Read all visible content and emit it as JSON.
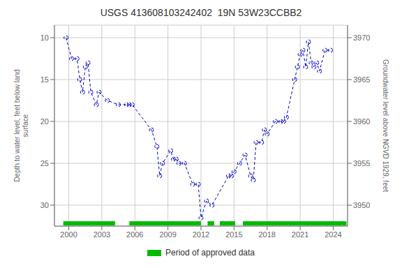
{
  "chart_data": {
    "type": "line",
    "title": "USGS 413608103242402  19N 53W23CCBB2",
    "ylabel": "Depth to water level, feet below land\nsurface",
    "y2label": "Groundwater level above NGVD 1929, feet",
    "x": [
      1999.75,
      2000.25,
      2000.75,
      2001.0,
      2001.25,
      2001.5,
      2001.75,
      2002.0,
      2002.5,
      2002.75,
      2003.5,
      2004.5,
      2005.25,
      2005.5,
      2005.75,
      2007.5,
      2008.0,
      2008.25,
      2008.5,
      2009.25,
      2009.5,
      2009.75,
      2010.0,
      2010.5,
      2011.25,
      2011.75,
      2012.0,
      2012.5,
      2013.0,
      2014.5,
      2014.75,
      2015.0,
      2015.5,
      2016.0,
      2016.5,
      2016.75,
      2017.0,
      2017.5,
      2017.75,
      2018.0,
      2018.75,
      2019.25,
      2019.5,
      2019.75,
      2020.5,
      2020.75,
      2021.0,
      2021.25,
      2021.5,
      2021.75,
      2022.0,
      2022.25,
      2022.5,
      2022.75,
      2023.25,
      2023.75
    ],
    "values": [
      10.0,
      12.5,
      12.5,
      15.0,
      16.5,
      13.5,
      13.0,
      16.5,
      18.0,
      16.5,
      17.5,
      18.0,
      18.0,
      18.0,
      18.0,
      21.0,
      23.0,
      26.5,
      25.0,
      23.5,
      24.5,
      24.5,
      25.0,
      25.0,
      27.5,
      27.5,
      31.5,
      29.5,
      30.0,
      26.5,
      26.5,
      26.0,
      25.0,
      24.0,
      26.5,
      27.0,
      22.5,
      22.5,
      21.0,
      21.5,
      20.0,
      20.0,
      20.0,
      19.5,
      15.0,
      13.5,
      12.0,
      11.5,
      13.5,
      10.5,
      13.0,
      13.5,
      13.0,
      14.0,
      11.5,
      11.5
    ],
    "color": "#0000cc",
    "marker": "o",
    "line_style": "dashed",
    "xlim": [
      1998.7,
      2025.3
    ],
    "xticks": [
      2000,
      2003,
      2006,
      2009,
      2012,
      2015,
      2018,
      2021,
      2024
    ],
    "ylim": [
      32.5,
      8.5
    ],
    "yticks": [
      10,
      15,
      20,
      25,
      30
    ],
    "y2lim": [
      3947.5,
      3971.5
    ],
    "y2ticks": [
      3950,
      3955,
      3960,
      3965,
      3970
    ],
    "grid": true,
    "legend": "bottom",
    "approved_periods": {
      "name": "Period of approved data",
      "color": "#00bb00",
      "ranges": [
        [
          1999.5,
          2004.2
        ],
        [
          2005.5,
          2012.0
        ],
        [
          2012.6,
          2013.2
        ],
        [
          2013.7,
          2015.1
        ],
        [
          2015.8,
          2025.2
        ]
      ]
    }
  }
}
